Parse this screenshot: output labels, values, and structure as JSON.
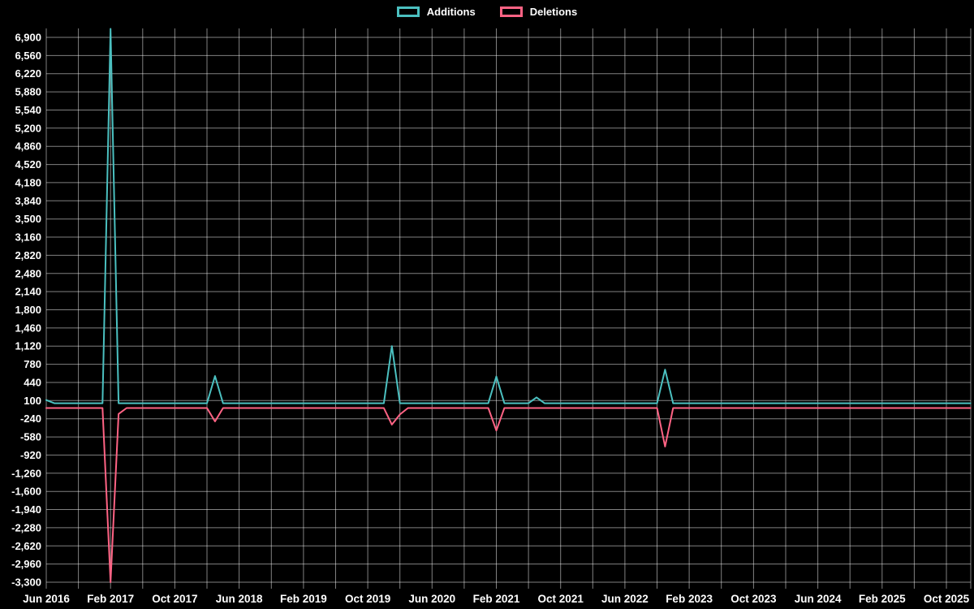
{
  "page": {
    "background": "#000000",
    "text_color": "#ffffff",
    "grid_color": "rgba(255,255,255,0.5)"
  },
  "legend": {
    "items": [
      {
        "label": "Additions",
        "color": "#4bc0c0"
      },
      {
        "label": "Deletions",
        "color": "#ff6384"
      }
    ]
  },
  "chart_data": {
    "type": "line",
    "title": "",
    "legend_position": "top",
    "grid": true,
    "x_range": {
      "start": "2016-06",
      "end": "2026-01"
    },
    "x_axis": {
      "months_per_tick": 8,
      "months_per_gridline": 4,
      "tick_labels": [
        "Jun 2016",
        "Feb 2017",
        "Oct 2017",
        "Jun 2018",
        "Feb 2019",
        "Oct 2019",
        "Jun 2020",
        "Feb 2021",
        "Oct 2021",
        "Jun 2022",
        "Feb 2023",
        "Oct 2023",
        "Jun 2024",
        "Feb 2025",
        "Oct 2025"
      ]
    },
    "y_axis": {
      "min": -3300,
      "max": 6900,
      "step": 340,
      "tick_labels": [
        "6,900",
        "6,560",
        "6,220",
        "5,880",
        "5,540",
        "5,200",
        "4,860",
        "4,520",
        "4,180",
        "3,840",
        "3,500",
        "3,160",
        "2,820",
        "2,480",
        "2,140",
        "1,800",
        "1,460",
        "1,120",
        "780",
        "440",
        "100",
        "-240",
        "-580",
        "-920",
        "-1,260",
        "-1,600",
        "-1,940",
        "-2,280",
        "-2,620",
        "-2,960",
        "-3,300"
      ]
    },
    "series": [
      {
        "name": "Additions",
        "color": "#4bc0c0",
        "baseline": 50,
        "points": {
          "2016-06": 110,
          "2017-02": 7060,
          "2018-03": 560,
          "2020-01": 1120,
          "2021-02": 550,
          "2021-07": 160,
          "2022-11": 680
        }
      },
      {
        "name": "Deletions",
        "color": "#ff6384",
        "baseline": -40,
        "points": {
          "2017-02": -3300,
          "2017-03": -150,
          "2018-03": -290,
          "2020-01": -350,
          "2020-02": -160,
          "2021-02": -460,
          "2022-11": -760
        }
      }
    ]
  }
}
